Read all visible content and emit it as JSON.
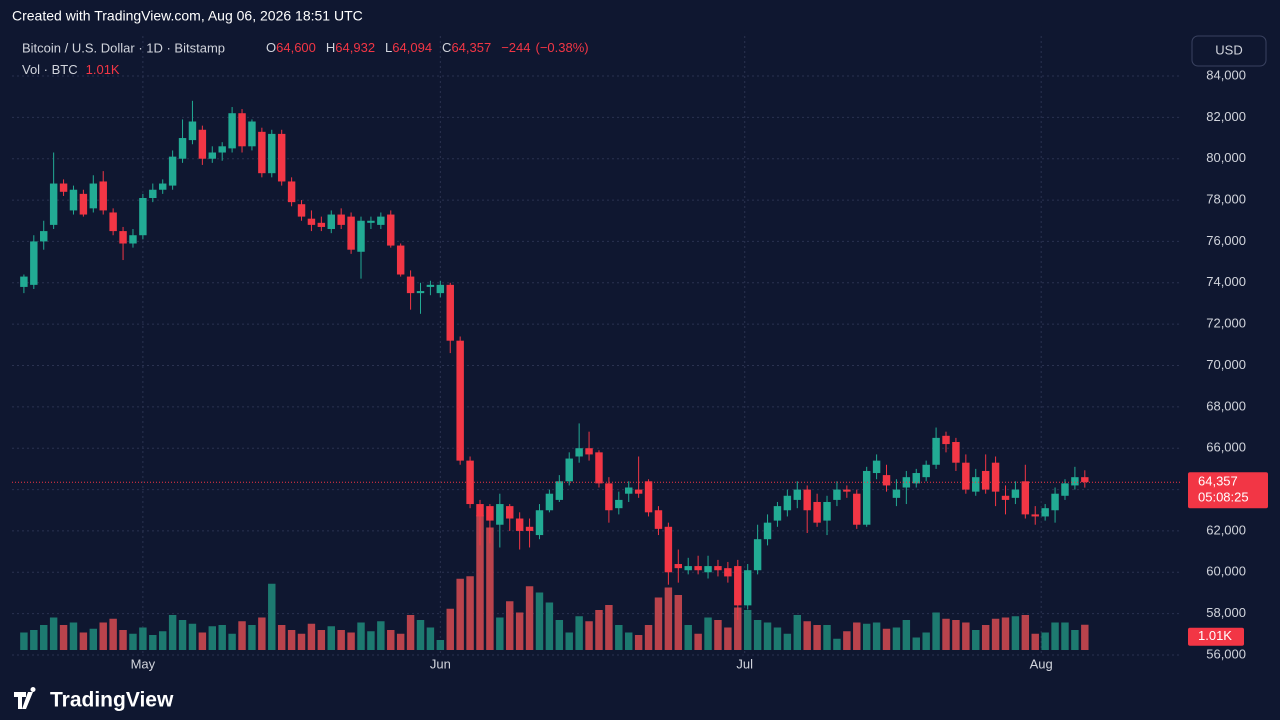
{
  "watermark": "Created with TradingView.com, Aug 06, 2026 18:51 UTC",
  "brand": "TradingView",
  "currency_button": "USD",
  "chart_data": {
    "type": "candlestick",
    "title": "Bitcoin / U.S. Dollar · 1D · Bitstamp",
    "ohlc_header": [
      {
        "key": "O",
        "value": 64600,
        "label": "64,600"
      },
      {
        "key": "H",
        "value": 64932,
        "label": "64,932"
      },
      {
        "key": "L",
        "value": 64094,
        "label": "64,094"
      },
      {
        "key": "C",
        "value": 64357,
        "label": "64,357"
      }
    ],
    "change": {
      "value": -244,
      "label": "−244"
    },
    "change_pct": {
      "value": -0.38,
      "label": "(−0.38%)"
    },
    "volume_title": "Vol · BTC",
    "volume_last": {
      "value": 1010,
      "label": "1.01K"
    },
    "last_price": {
      "value": 64357,
      "label": "64,357"
    },
    "countdown": "05:08:25",
    "up_color": "#22ab94",
    "down_color": "#f23645",
    "up_volume_color": "#1d7a70",
    "down_volume_color": "#b9434c",
    "grid": true,
    "open": [
      73800,
      73900,
      76000,
      76800,
      78800,
      77500,
      78300,
      77600,
      78900,
      77400,
      76500,
      75900,
      76300,
      78100,
      78500,
      78700,
      80000,
      80900,
      81400,
      80000,
      80300,
      80500,
      82200,
      80600,
      81300,
      79300,
      81200,
      78900,
      77800,
      77100,
      76900,
      76600,
      77300,
      77200,
      75500,
      76900,
      76800,
      77300,
      75800,
      74300,
      73500,
      73800,
      73500,
      73900,
      71200,
      65400,
      63300,
      63200,
      62300,
      63200,
      62600,
      62200,
      61800,
      63000,
      63500,
      64400,
      65600,
      66000,
      65800,
      64300,
      63100,
      63800,
      64000,
      64400,
      63000,
      62200,
      60400,
      60100,
      60300,
      60000,
      60300,
      60200,
      60300,
      58400,
      60100,
      61600,
      62500,
      63000,
      63500,
      64000,
      63400,
      62500,
      63500,
      64000,
      63800,
      62300,
      64800,
      64700,
      63600,
      64100,
      64300,
      64600,
      65200,
      66600,
      66300,
      65300,
      63900,
      64900,
      65300,
      63700,
      63600,
      64400,
      62800,
      62700,
      63000,
      63700,
      64200,
      64600
    ],
    "high": [
      74400,
      76300,
      77000,
      80300,
      79000,
      78700,
      78500,
      79200,
      79400,
      77600,
      76700,
      76600,
      78300,
      78800,
      79000,
      80400,
      81900,
      82800,
      81600,
      80600,
      80800,
      82500,
      82400,
      81900,
      81500,
      81400,
      81400,
      79100,
      78000,
      77500,
      77200,
      77500,
      77600,
      77400,
      77200,
      77200,
      77400,
      77500,
      75900,
      74600,
      74000,
      74100,
      74100,
      74000,
      71400,
      65600,
      63500,
      63300,
      63800,
      63300,
      62900,
      62600,
      63300,
      64000,
      64700,
      65800,
      67200,
      66800,
      65900,
      64600,
      63900,
      64400,
      65600,
      64500,
      63200,
      62400,
      61100,
      60700,
      60800,
      60800,
      60600,
      60500,
      60600,
      60400,
      62300,
      62800,
      63400,
      64000,
      64400,
      64200,
      63800,
      63700,
      64400,
      64200,
      64000,
      65100,
      65700,
      65200,
      64500,
      64900,
      65000,
      65400,
      67000,
      66800,
      66500,
      65700,
      65000,
      65700,
      65600,
      64200,
      64400,
      65200,
      63200,
      63300,
      64100,
      64500,
      65100,
      64932
    ],
    "low": [
      73500,
      73700,
      75600,
      76600,
      78200,
      77300,
      77200,
      77400,
      77300,
      76300,
      75100,
      75700,
      76100,
      77900,
      78300,
      78500,
      79800,
      80700,
      79700,
      79800,
      79900,
      80300,
      80300,
      80400,
      79100,
      79100,
      78700,
      77700,
      77000,
      76500,
      76500,
      76400,
      76600,
      75400,
      74200,
      76600,
      76600,
      75700,
      74300,
      72700,
      72500,
      73400,
      73300,
      70600,
      65200,
      63100,
      61300,
      61400,
      61200,
      62000,
      61100,
      61200,
      61600,
      62900,
      63400,
      64200,
      65300,
      65400,
      64100,
      62400,
      62800,
      63400,
      63600,
      62700,
      61800,
      59400,
      59500,
      59900,
      59900,
      59700,
      59800,
      59500,
      57700,
      58200,
      59900,
      61300,
      62200,
      62700,
      63100,
      61900,
      62200,
      61800,
      63200,
      63600,
      62100,
      62200,
      64500,
      63900,
      63200,
      63300,
      64100,
      64400,
      65000,
      65800,
      64900,
      63800,
      63700,
      63800,
      63200,
      62800,
      63300,
      62600,
      62300,
      62500,
      62400,
      63500,
      64000,
      64094
    ],
    "close": [
      74300,
      76000,
      76500,
      78800,
      78400,
      78500,
      77300,
      78800,
      77500,
      76500,
      75900,
      76300,
      78100,
      78500,
      78800,
      80100,
      81000,
      81800,
      80000,
      80300,
      80600,
      82200,
      80600,
      81800,
      79300,
      81200,
      78900,
      77900,
      77200,
      76800,
      76700,
      77300,
      76800,
      75600,
      77000,
      77000,
      77200,
      75800,
      74400,
      73500,
      73600,
      73900,
      73900,
      71200,
      65400,
      63300,
      62700,
      62500,
      63300,
      62600,
      62000,
      62000,
      63000,
      63800,
      64400,
      65500,
      66000,
      65700,
      64300,
      63000,
      63500,
      64100,
      63800,
      62900,
      62100,
      60000,
      60200,
      60300,
      60100,
      60300,
      60100,
      59800,
      58400,
      60100,
      61600,
      62400,
      63200,
      63700,
      64000,
      63000,
      62400,
      63400,
      64000,
      63900,
      62300,
      64900,
      65400,
      64200,
      64000,
      64600,
      64800,
      65200,
      66500,
      66200,
      65300,
      64000,
      64600,
      64000,
      63900,
      63500,
      64000,
      62800,
      62700,
      63100,
      63800,
      64300,
      64600,
      64357
    ],
    "volume": [
      700,
      800,
      1000,
      1300,
      1000,
      1100,
      700,
      850,
      1100,
      1250,
      800,
      650,
      900,
      600,
      750,
      1400,
      1200,
      1050,
      700,
      950,
      1000,
      650,
      1150,
      1000,
      1300,
      2650,
      1000,
      800,
      650,
      1050,
      800,
      950,
      800,
      700,
      1100,
      750,
      1150,
      800,
      650,
      1400,
      1200,
      900,
      400,
      1650,
      2850,
      2950,
      5400,
      4900,
      1300,
      1950,
      1500,
      2550,
      2300,
      1900,
      1200,
      700,
      1350,
      1150,
      1600,
      1800,
      1000,
      700,
      600,
      1000,
      2100,
      2500,
      2200,
      1000,
      650,
      1300,
      1200,
      900,
      1700,
      1600,
      1200,
      1100,
      900,
      650,
      1400,
      1150,
      1000,
      1000,
      450,
      750,
      1100,
      1050,
      1100,
      850,
      900,
      1200,
      500,
      700,
      1500,
      1250,
      1200,
      1100,
      800,
      1000,
      1250,
      1300,
      1350,
      1400,
      650,
      700,
      1100,
      1100,
      800,
      1010
    ],
    "volume_ylim": [
      0,
      7000
    ],
    "ylim": [
      56000,
      84000
    ],
    "yticks": [
      {
        "value": 56000,
        "label": "56,000"
      },
      {
        "value": 58000,
        "label": "58,000"
      },
      {
        "value": 60000,
        "label": "60,000"
      },
      {
        "value": 62000,
        "label": "62,000"
      },
      {
        "value": 64000,
        "label": "64,000"
      },
      {
        "value": 66000,
        "label": "66,000"
      },
      {
        "value": 68000,
        "label": "68,000"
      },
      {
        "value": 70000,
        "label": "70,000"
      },
      {
        "value": 72000,
        "label": "72,000"
      },
      {
        "value": 74000,
        "label": "74,000"
      },
      {
        "value": 76000,
        "label": "76,000"
      },
      {
        "value": 78000,
        "label": "78,000"
      },
      {
        "value": 80000,
        "label": "80,000"
      },
      {
        "value": 82000,
        "label": "82,000"
      },
      {
        "value": 84000,
        "label": "84,000"
      }
    ],
    "xlim": [
      -1.2,
      116.6
    ],
    "xticks": [
      {
        "value": 12,
        "label": "May"
      },
      {
        "value": 42,
        "label": "Jun"
      },
      {
        "value": 72.7,
        "label": "Jul"
      },
      {
        "value": 102.6,
        "label": "Aug"
      }
    ]
  }
}
